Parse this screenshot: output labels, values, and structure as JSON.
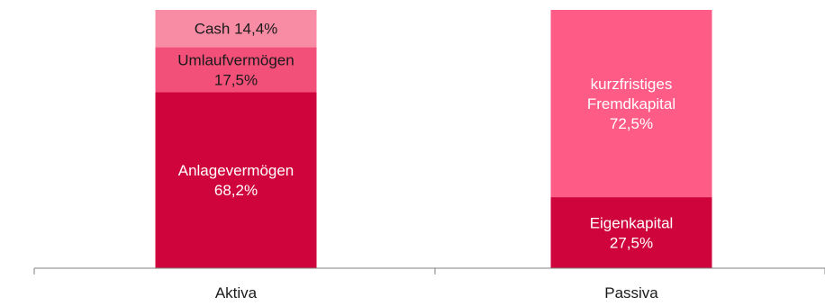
{
  "chart_data": {
    "type": "bar",
    "stacked": true,
    "percent_stacked": true,
    "categories": [
      "Aktiva",
      "Passiva"
    ],
    "ylim": [
      0,
      100
    ],
    "grid": false,
    "legend": "none",
    "stacks": [
      {
        "category": "Aktiva",
        "segments": [
          {
            "label_lines": [
              "Anlagevermögen",
              "68,2%"
            ],
            "value": 68.2,
            "color": "#d0043c"
          },
          {
            "label_lines": [
              "Umlaufvermögen",
              "17,5%"
            ],
            "value": 17.5,
            "color": "#f24f79"
          },
          {
            "label_lines": [
              "Cash 14,4%"
            ],
            "value": 14.4,
            "color": "#f88ca4"
          }
        ]
      },
      {
        "category": "Passiva",
        "segments": [
          {
            "label_lines": [
              "Eigenkapital",
              "27,5%"
            ],
            "value": 27.5,
            "color": "#d0043c"
          },
          {
            "label_lines": [
              "kurzfristiges",
              "Fremdkapital",
              "72,5%"
            ],
            "value": 72.5,
            "color": "#ff5b87"
          }
        ]
      }
    ]
  }
}
